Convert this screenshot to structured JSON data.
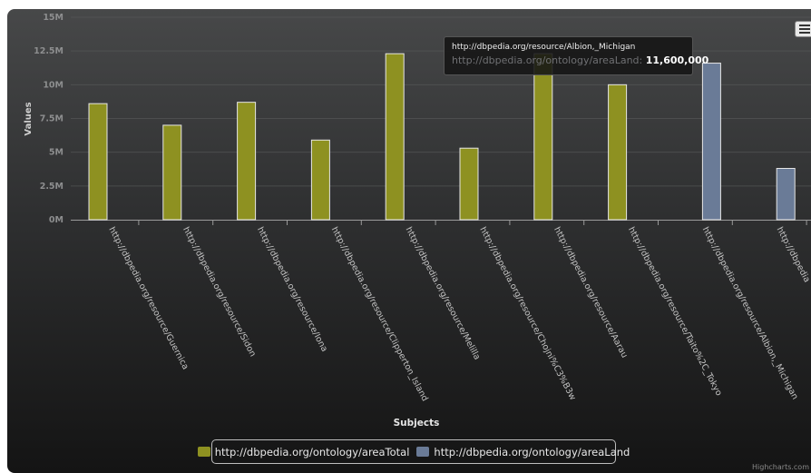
{
  "chart_data": {
    "type": "bar",
    "xlabel": "Subjects",
    "ylabel": "Values",
    "ylim": [
      0,
      15000000
    ],
    "y_ticks": [
      {
        "value": 0,
        "label": "0M"
      },
      {
        "value": 2500000,
        "label": "2.5M"
      },
      {
        "value": 5000000,
        "label": "5M"
      },
      {
        "value": 7500000,
        "label": "7.5M"
      },
      {
        "value": 10000000,
        "label": "10M"
      },
      {
        "value": 12500000,
        "label": "12.5M"
      },
      {
        "value": 15000000,
        "label": "15M"
      }
    ],
    "grid": true,
    "legend_position": "bottom-center",
    "categories": [
      "http://dbpedia.org/resource/Guernica",
      "http://dbpedia.org/resource/Sidon",
      "http://dbpedia.org/resource/Iona",
      "http://dbpedia.org/resource/Clipperton_Island",
      "http://dbpedia.org/resource/Melilla",
      "http://dbpedia.org/resource/Chojni%C3%B3w",
      "http://dbpedia.org/resource/Aarau",
      "http://dbpedia.org/resource/Taito%2C_Tokyo",
      "http://dbpedia.org/resource/Albion,_Michigan",
      "http://dbpedia"
    ],
    "series": [
      {
        "name": "http://dbpedia.org/ontology/areaTotal",
        "color": "#8e9121",
        "values": [
          8600000,
          7000000,
          8700000,
          5900000,
          12300000,
          5300000,
          12300000,
          10000000,
          null,
          null
        ]
      },
      {
        "name": "http://dbpedia.org/ontology/areaLand",
        "color": "#6a7b97",
        "values": [
          null,
          null,
          null,
          null,
          null,
          null,
          null,
          null,
          11600000,
          3800000
        ]
      }
    ]
  },
  "tooltip": {
    "title": "http://dbpedia.org/resource/Albion,_Michigan",
    "series": "http://dbpedia.org/ontology/areaLand",
    "value": "11,600,000"
  },
  "legend": {
    "items": [
      {
        "label": "http://dbpedia.org/ontology/areaTotal",
        "color": "#8e9121"
      },
      {
        "label": "http://dbpedia.org/ontology/areaLand",
        "color": "#6a7b97"
      }
    ]
  },
  "credit": "Highcharts.com",
  "menu_icon": "hamburger-menu-icon"
}
